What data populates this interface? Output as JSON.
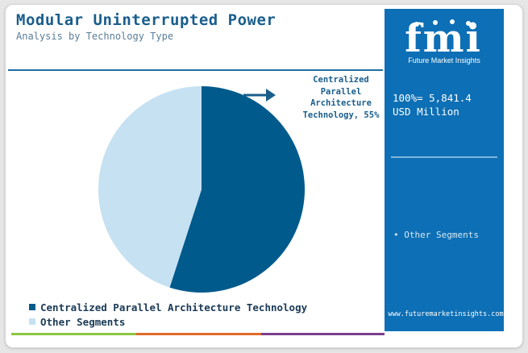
{
  "header": {
    "title": "Modular Uninterrupted Power",
    "subtitle": "Analysis by Technology Type"
  },
  "colors": {
    "dark_blue": "#005a8c",
    "light_blue": "#c5e1f2",
    "panel_blue": "#0d6fb5",
    "bar_green": "#8cc63f",
    "bar_orange": "#e06a2b",
    "bar_purple": "#7b3f8f"
  },
  "callout": {
    "label": "Centralized Parallel Architecture Technology, 55%",
    "icon": "arrow-right-icon"
  },
  "chart_data": {
    "type": "pie",
    "title": "Modular Uninterrupted Power",
    "subtitle": "Analysis by Technology Type",
    "slices": [
      {
        "label": "Centralized Parallel Architecture Technology",
        "value": 55,
        "color": "#005a8c"
      },
      {
        "label": "Other Segments",
        "value": 45,
        "color": "#c5e1f2"
      }
    ],
    "legend_position": "bottom-left"
  },
  "legend": {
    "items": [
      {
        "label": "Centralized Parallel Architecture Technology",
        "color": "#005a8c"
      },
      {
        "label": "Other Segments",
        "color": "#c5e1f2"
      }
    ]
  },
  "panel": {
    "logo_text": "fmi",
    "logo_subtitle": "Future Market Insights",
    "total_line1": "100%= 5,841.4",
    "total_line2": "USD Million",
    "segment_label": "• Other Segments",
    "url": "www.futuremarketinsights.com"
  }
}
